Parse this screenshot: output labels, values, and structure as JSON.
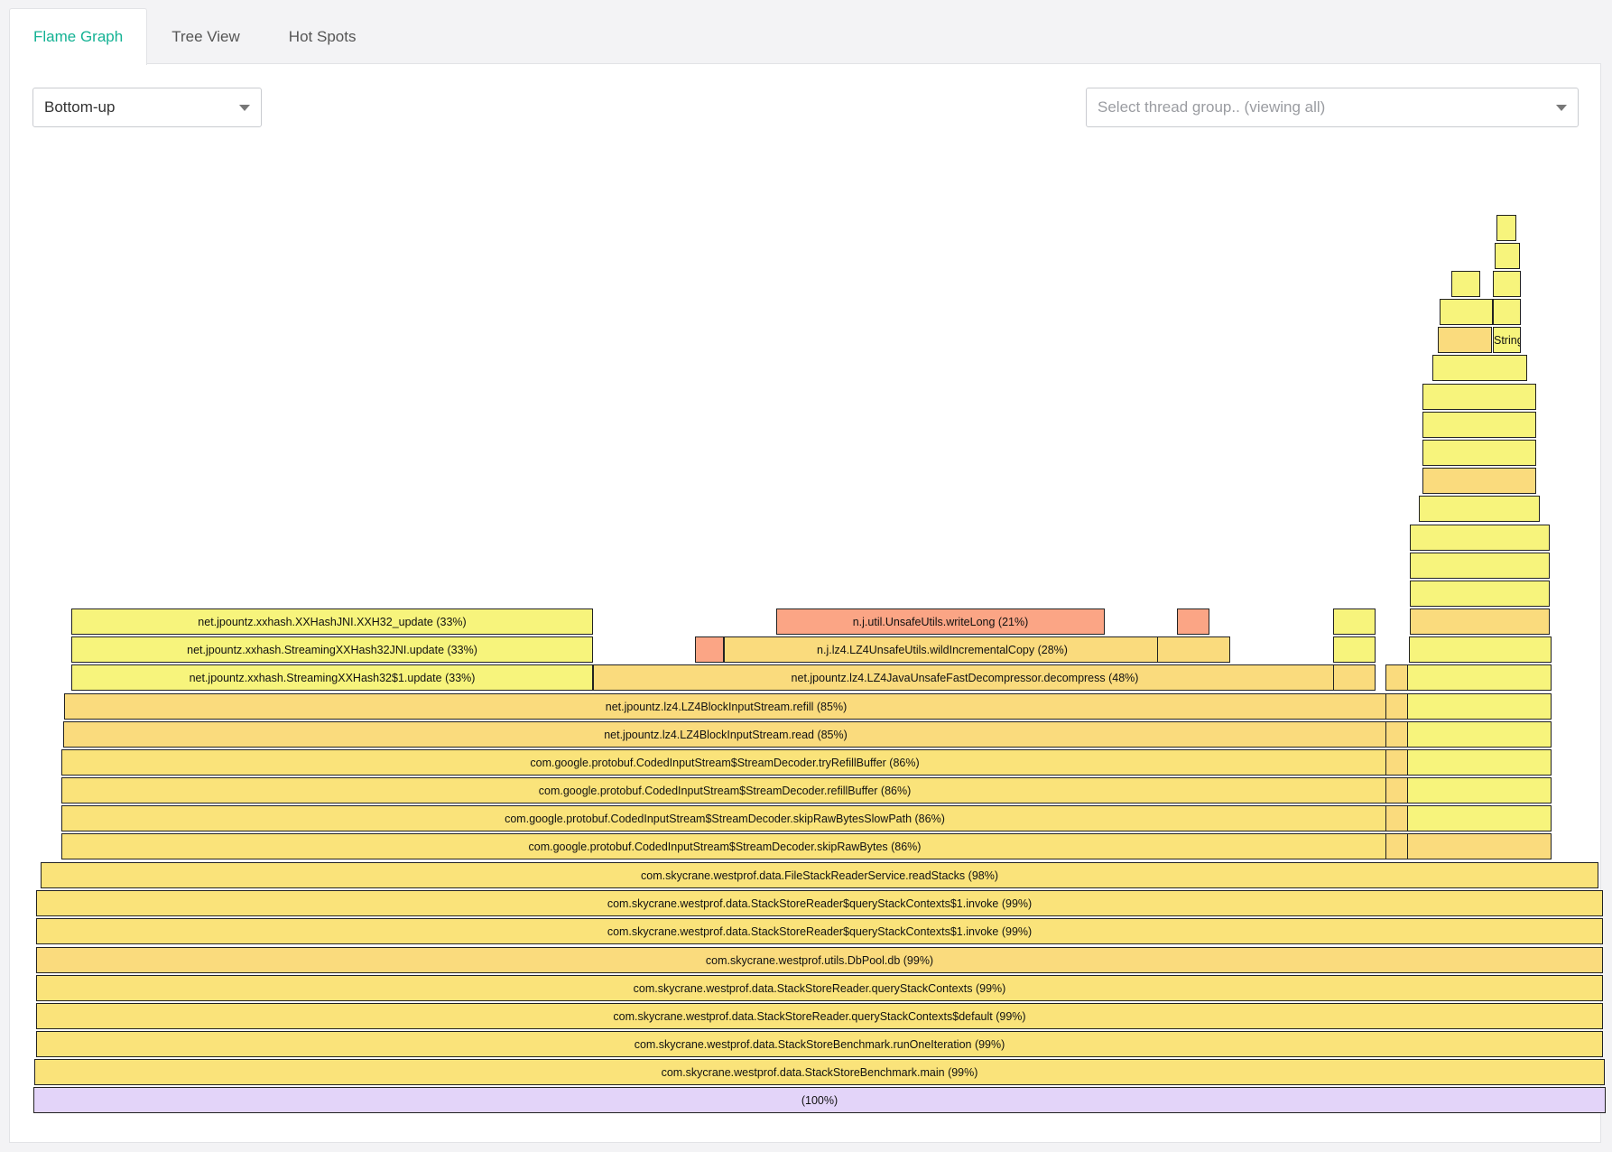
{
  "tabs": [
    {
      "label": "Flame Graph",
      "active": true
    },
    {
      "label": "Tree View",
      "active": false
    },
    {
      "label": "Hot Spots",
      "active": false
    }
  ],
  "controls": {
    "mode_select": {
      "value": "Bottom-up"
    },
    "thread_select": {
      "placeholder": "Select thread group.. (viewing all)"
    }
  },
  "colors": {
    "accent": "#14b294",
    "root": "#e3d4f9",
    "yellow_bright": "#f7f47c",
    "yellow": "#fae37a",
    "orange": "#fadb7d",
    "salmon": "#fba585"
  },
  "flame_graph": {
    "frames": [
      {
        "label": "(100%)",
        "color": "root"
      },
      {
        "label": "com.skycrane.westprof.data.StackStoreBenchmark.main (99%)",
        "color": "yellow"
      },
      {
        "label": "com.skycrane.westprof.data.StackStoreBenchmark.runOneIteration (99%)",
        "color": "yellow"
      },
      {
        "label": "com.skycrane.westprof.data.StackStoreReader.queryStackContexts$default (99%)",
        "color": "yellow"
      },
      {
        "label": "com.skycrane.westprof.data.StackStoreReader.queryStackContexts (99%)",
        "color": "yellow"
      },
      {
        "label": "com.skycrane.westprof.utils.DbPool.db (99%)",
        "color": "orange"
      },
      {
        "label": "com.skycrane.westprof.data.StackStoreReader$queryStackContexts$1.invoke (99%)",
        "color": "yellow"
      },
      {
        "label": "com.skycrane.westprof.data.StackStoreReader$queryStackContexts$1.invoke (99%)",
        "color": "yellow"
      },
      {
        "label": "com.skycrane.westprof.data.FileStackReaderService.readStacks (98%)",
        "color": "yellow"
      },
      {
        "label": "com.google.protobuf.CodedInputStream$StreamDecoder.skipRawBytes (86%)",
        "color": "yellow"
      },
      {
        "label": "com.google.protobuf.CodedInputStream$StreamDecoder.skipRawBytesSlowPath (86%)",
        "color": "yellow"
      },
      {
        "label": "com.google.protobuf.CodedInputStream$StreamDecoder.refillBuffer (86%)",
        "color": "yellow"
      },
      {
        "label": "com.google.protobuf.CodedInputStream$StreamDecoder.tryRefillBuffer (86%)",
        "color": "yellow"
      },
      {
        "label": "net.jpountz.lz4.LZ4BlockInputStream.read (85%)",
        "color": "orange"
      },
      {
        "label": "net.jpountz.lz4.LZ4BlockInputStream.refill (85%)",
        "color": "orange"
      },
      {
        "label": "net.jpountz.xxhash.StreamingXXHash32$1.update (33%)",
        "color": "yellow_bright"
      },
      {
        "label": "net.jpountz.xxhash.StreamingXXHash32JNI.update (33%)",
        "color": "yellow_bright"
      },
      {
        "label": "net.jpountz.xxhash.XXHashJNI.XXH32_update (33%)",
        "color": "yellow_bright"
      },
      {
        "label": "net.jpountz.lz4.LZ4JavaUnsafeFastDecompressor.decompress (48%)",
        "color": "orange"
      },
      {
        "label": "n.j.lz4.LZ4UnsafeUtils.wildIncrementalCopy (28%)",
        "color": "orange"
      },
      {
        "label": "n.j.util.UnsafeUtils.writeLong (21%)",
        "color": "salmon"
      },
      {
        "label": "",
        "color": "salmon"
      },
      {
        "label": "",
        "color": "orange"
      },
      {
        "label": "",
        "color": "salmon"
      },
      {
        "label": "",
        "color": "orange"
      },
      {
        "label": "",
        "color": "yellow_bright"
      },
      {
        "label": "",
        "color": "yellow_bright"
      },
      {
        "label": "",
        "color": "orange"
      },
      {
        "label": "",
        "color": "orange"
      },
      {
        "label": "",
        "color": "orange"
      },
      {
        "label": "",
        "color": "orange"
      },
      {
        "label": "",
        "color": "orange"
      },
      {
        "label": "",
        "color": "orange"
      },
      {
        "label": "",
        "color": "orange"
      },
      {
        "label": "",
        "color": "orange"
      },
      {
        "label": "",
        "color": "yellow_bright"
      },
      {
        "label": "",
        "color": "yellow_bright"
      },
      {
        "label": "",
        "color": "yellow_bright"
      },
      {
        "label": "",
        "color": "yellow_bright"
      },
      {
        "label": "",
        "color": "yellow_bright"
      },
      {
        "label": "",
        "color": "yellow_bright"
      },
      {
        "label": "",
        "color": "yellow_bright"
      },
      {
        "label": "",
        "color": "orange"
      },
      {
        "label": "",
        "color": "yellow_bright"
      },
      {
        "label": "",
        "color": "yellow_bright"
      },
      {
        "label": "",
        "color": "yellow_bright"
      },
      {
        "label": "",
        "color": "yellow_bright"
      },
      {
        "label": "",
        "color": "orange"
      },
      {
        "label": "",
        "color": "yellow_bright"
      },
      {
        "label": "",
        "color": "yellow_bright"
      },
      {
        "label": "",
        "color": "yellow_bright"
      },
      {
        "label": "",
        "color": "yellow_bright"
      },
      {
        "label": "",
        "color": "orange"
      },
      {
        "label": "String",
        "color": "yellow_bright"
      },
      {
        "label": "",
        "color": "yellow_bright"
      },
      {
        "label": "",
        "color": "yellow_bright"
      },
      {
        "label": "",
        "color": "yellow_bright"
      },
      {
        "label": "",
        "color": "yellow_bright"
      },
      {
        "label": "",
        "color": "yellow_bright"
      },
      {
        "label": "",
        "color": "yellow_bright"
      },
      {
        "label": "",
        "color": "yellow_bright"
      }
    ]
  }
}
